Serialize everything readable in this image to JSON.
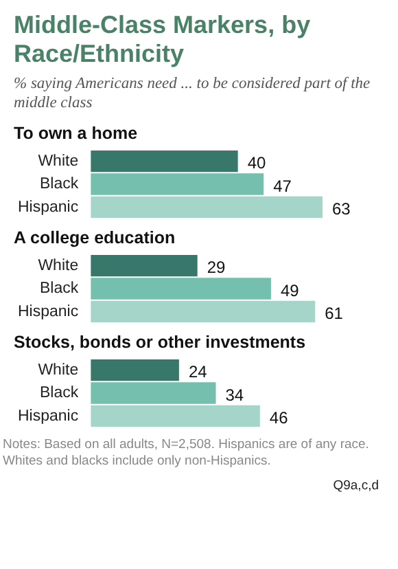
{
  "chart_data": [
    {
      "type": "other",
      "title": "Middle-Class Markers, by Race/Ethnicity",
      "subtitle": "% saying Americans need ... to be considered part of the middle class"
    },
    {
      "type": "bar",
      "orientation": "horizontal",
      "title": "To own a home",
      "categories": [
        "White",
        "Black",
        "Hispanic"
      ],
      "values": [
        40,
        47,
        63
      ],
      "colors": [
        "#37786a",
        "#75bfae",
        "#a5d4c8"
      ],
      "data_labels": true
    },
    {
      "type": "bar",
      "orientation": "horizontal",
      "title": "A college education",
      "categories": [
        "White",
        "Black",
        "Hispanic"
      ],
      "values": [
        29,
        49,
        61
      ],
      "colors": [
        "#37786a",
        "#75bfae",
        "#a5d4c8"
      ],
      "data_labels": true
    },
    {
      "type": "bar",
      "orientation": "horizontal",
      "title": "Stocks, bonds or other investments",
      "categories": [
        "White",
        "Black",
        "Hispanic"
      ],
      "values": [
        24,
        34,
        46
      ],
      "colors": [
        "#37786a",
        "#75bfae",
        "#a5d4c8"
      ],
      "data_labels": true,
      "annotations": [
        "Notes: Based on all adults, N=2,508. Hispanics are of any race. Whites and blacks include only non-Hispanics.",
        "Q9a,c,d"
      ]
    }
  ]
}
